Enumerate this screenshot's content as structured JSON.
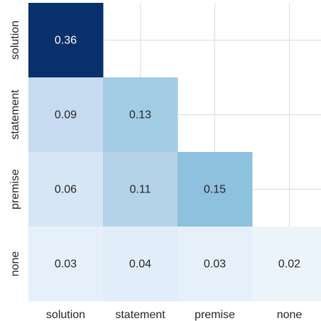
{
  "chart_data": {
    "type": "heatmap",
    "title": "",
    "xlabel": "",
    "ylabel": "",
    "colormap": "Blues",
    "vmin": 0.0,
    "vmax": 0.36,
    "grid": true,
    "x_categories": [
      "solution",
      "statement",
      "premise",
      "none"
    ],
    "y_categories": [
      "solution",
      "statement",
      "premise",
      "none"
    ],
    "mask": "upper triangle hidden (lower-triangular incl. diagonal shown)",
    "cells": [
      {
        "row": "solution",
        "col": "solution",
        "value": 0.36,
        "label": "0.36"
      },
      {
        "row": "statement",
        "col": "solution",
        "value": 0.09,
        "label": "0.09"
      },
      {
        "row": "statement",
        "col": "statement",
        "value": 0.13,
        "label": "0.13"
      },
      {
        "row": "premise",
        "col": "solution",
        "value": 0.06,
        "label": "0.06"
      },
      {
        "row": "premise",
        "col": "statement",
        "value": 0.11,
        "label": "0.11"
      },
      {
        "row": "premise",
        "col": "premise",
        "value": 0.15,
        "label": "0.15"
      },
      {
        "row": "none",
        "col": "solution",
        "value": 0.03,
        "label": "0.03"
      },
      {
        "row": "none",
        "col": "statement",
        "value": 0.04,
        "label": "0.04"
      },
      {
        "row": "none",
        "col": "premise",
        "value": 0.03,
        "label": "0.03"
      },
      {
        "row": "none",
        "col": "none",
        "value": 0.02,
        "label": "0.02"
      }
    ],
    "colors": {
      "gridline": "#dcdcdc",
      "text_dark": "#262626",
      "text_light": "#ffffff",
      "background": "#ffffff"
    }
  }
}
